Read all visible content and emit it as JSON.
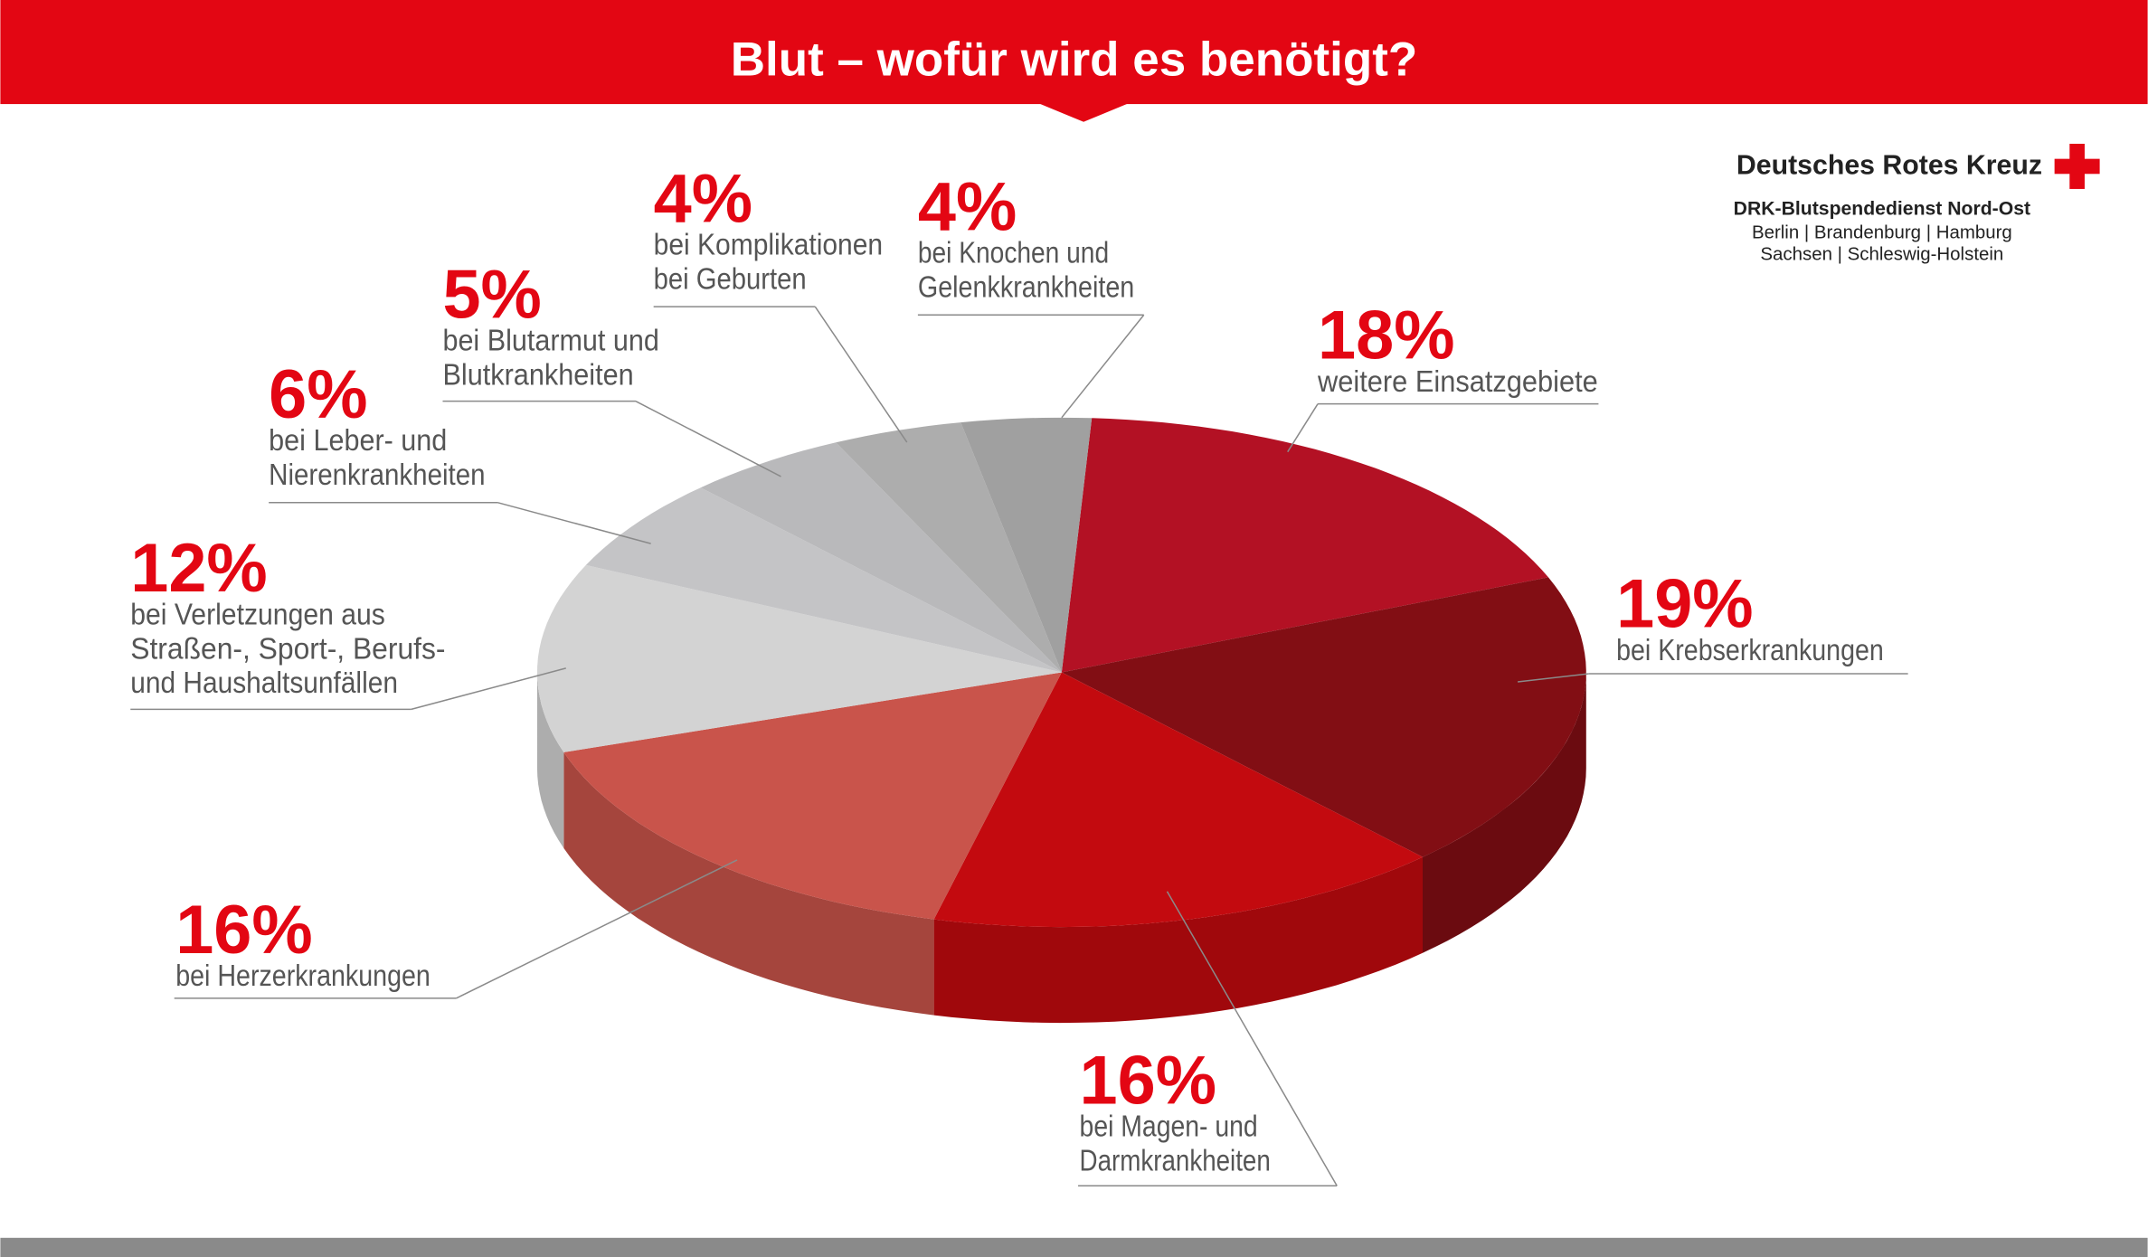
{
  "header": {
    "title": "Blut – wofür wird es benötigt?"
  },
  "logo": {
    "name": "Deutsches Rotes Kreuz",
    "service": "DRK-Blutspendedienst Nord-Ost",
    "regions_1": "Berlin | Brandenburg | Hamburg",
    "regions_2": "Sachsen | Schleswig-Holstein"
  },
  "colors": {
    "brand_red": "#e30613",
    "text_gray": "#555555",
    "footer_gray": "#8a8a8a"
  },
  "chart_data": {
    "type": "pie",
    "style": "3d",
    "title": "Blut – wofür wird es benötigt?",
    "slices": [
      {
        "value": 18,
        "label": "18%",
        "text": [
          "weitere Einsatzgebiete"
        ],
        "color": "#b31124"
      },
      {
        "value": 19,
        "label": "19%",
        "text": [
          "bei Krebserkrankungen"
        ],
        "color": "#820e14"
      },
      {
        "value": 16,
        "label": "16%",
        "text": [
          "bei Magen- und",
          "Darmkrankheiten"
        ],
        "color": "#c30a0f"
      },
      {
        "value": 16,
        "label": "16%",
        "text": [
          "bei Herzerkrankungen"
        ],
        "color": "#c9544b"
      },
      {
        "value": 12,
        "label": "12%",
        "text": [
          "bei Verletzungen aus",
          "Straßen-, Sport-, Berufs-",
          "und Haushaltsunfällen"
        ],
        "color": "#d3d3d3"
      },
      {
        "value": 6,
        "label": "6%",
        "text": [
          "bei Leber- und",
          "Nierenkrankheiten"
        ],
        "color": "#c4c4c6"
      },
      {
        "value": 5,
        "label": "5%",
        "text": [
          "bei Blutarmut und",
          "Blutkrankheiten"
        ],
        "color": "#b9b9bb"
      },
      {
        "value": 4,
        "label": "4%",
        "text": [
          "bei Komplikationen",
          "bei Geburten"
        ],
        "color": "#adadad"
      },
      {
        "value": 4,
        "label": "4%",
        "text": [
          "bei Knochen und",
          "Gelenkkrankheiten"
        ],
        "color": "#a0a0a0"
      }
    ]
  }
}
